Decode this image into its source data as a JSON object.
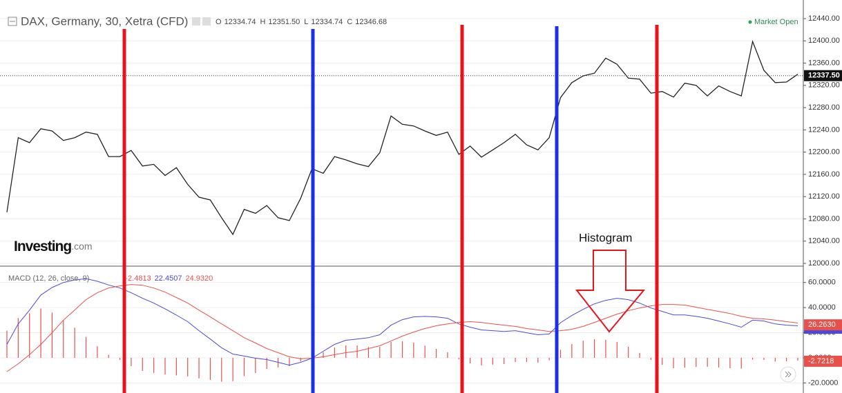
{
  "header": {
    "title": "DAX, Germany, 30, Xetra (CFD)",
    "ohlc": [
      {
        "label": "O",
        "value": "12334.74"
      },
      {
        "label": "H",
        "value": "12351.50"
      },
      {
        "label": "L",
        "value": "12334.74"
      },
      {
        "label": "C",
        "value": "12346.68"
      }
    ],
    "status": "Market Open",
    "logo": "Investing",
    "logo_suffix": ".com"
  },
  "annotation": "Histogram",
  "chart_data": [
    {
      "type": "line",
      "color": "#222222",
      "values": [
        12092,
        12226,
        12217,
        12242,
        12238,
        12221,
        12226,
        12236,
        12232,
        12192,
        12192,
        12203,
        12175,
        12178,
        12158,
        12172,
        12142,
        12119,
        12114,
        12082,
        12052,
        12097,
        12090,
        12104,
        12082,
        12077,
        12117,
        12170,
        12162,
        12192,
        12186,
        12179,
        12174,
        12199,
        12265,
        12250,
        12247,
        12238,
        12230,
        12236,
        12196,
        12211,
        12191,
        12204,
        12217,
        12232,
        12213,
        12204,
        12226,
        12298,
        12325,
        12337,
        12342,
        12369,
        12358,
        12333,
        12331,
        12306,
        12309,
        12299,
        12324,
        12320,
        12301,
        12319,
        12309,
        12301,
        12399,
        12347,
        12325,
        12326,
        12340
      ],
      "ylim": [
        12000,
        12440
      ],
      "yticks": [
        {
          "value": 12000,
          "label": "12000.00"
        },
        {
          "value": 12040,
          "label": "12040.00"
        },
        {
          "value": 12080,
          "label": "12080.00"
        },
        {
          "value": 12120,
          "label": "12120.00"
        },
        {
          "value": 12160,
          "label": "12160.00"
        },
        {
          "value": 12200,
          "label": "12200.00"
        },
        {
          "value": 12240,
          "label": "12240.00"
        },
        {
          "value": 12280,
          "label": "12280.00"
        },
        {
          "value": 12320,
          "label": "12320.00"
        },
        {
          "value": 12360,
          "label": "12360.00"
        },
        {
          "value": 12400,
          "label": "12400.00"
        },
        {
          "value": 12440,
          "label": "12440.00"
        }
      ],
      "last_value": 12337.5,
      "last_label": "12337.50",
      "grid": true
    },
    {
      "type": "macd",
      "title": "MACD (12, 26, close, 9)",
      "series": [
        {
          "color": "#4a4ad6",
          "legend_value": "22.4507",
          "last_value": 23.5412,
          "last_label": "23.5412",
          "values": [
            10.7,
            27,
            38,
            50,
            56,
            60,
            62,
            63,
            61,
            58,
            55.6,
            51.8,
            47.4,
            43.6,
            39,
            34,
            28.8,
            21.6,
            15,
            8,
            3,
            1.4,
            -0.3,
            -1.4,
            -3.6,
            -5.8,
            -3.6,
            -0.3,
            5.2,
            10.7,
            14,
            15,
            16,
            18.4,
            26,
            30.4,
            32.6,
            33,
            32.6,
            31.5,
            27,
            24.4,
            22.2,
            21.6,
            21,
            21.6,
            20,
            18.4,
            19,
            28,
            33.7,
            38.6,
            43,
            45.8,
            47.4,
            46.3,
            43.6,
            39.7,
            37,
            34.2,
            34.2,
            33,
            31.5,
            29.3,
            27,
            24.4,
            30,
            29.3,
            27,
            26,
            25.5
          ]
        },
        {
          "color": "#e8504a",
          "legend_value": "24.9320",
          "last_value": 26.263,
          "last_label": "26.2630",
          "values": [
            -11,
            -4.7,
            2.5,
            10.7,
            20,
            30,
            38,
            46.3,
            51.8,
            55.6,
            57.3,
            58.4,
            57.8,
            55.6,
            52.3,
            48,
            43.6,
            38,
            32.6,
            27,
            21.6,
            16,
            11.8,
            7.4,
            4.1,
            0.8,
            -0.8,
            -0.3,
            0.8,
            2.5,
            4.1,
            5.2,
            7.4,
            9.6,
            13.4,
            17.3,
            20.5,
            23.3,
            25.5,
            27,
            28.2,
            28.8,
            28.2,
            27,
            26,
            25,
            23.3,
            22.2,
            21,
            21.6,
            22.7,
            25,
            28.2,
            31.5,
            34.8,
            37.5,
            39.7,
            41.4,
            42.5,
            42.5,
            42,
            40.3,
            38.6,
            37,
            35.3,
            33,
            31.5,
            31,
            30,
            28.8,
            27.7
          ]
        }
      ],
      "histogram": {
        "color": "#e8504a",
        "legend_value": "-2.4813",
        "last_value": -2.7218,
        "last_label": "-2.7218",
        "values": [
          21.7,
          31.7,
          35.5,
          39.3,
          36,
          30,
          24,
          16.7,
          9.2,
          2.4,
          -1.7,
          -6.6,
          -10.4,
          -12,
          -13.3,
          -14,
          -14.8,
          -16.4,
          -17.6,
          -19,
          -18.6,
          -14.6,
          -12.1,
          -8.8,
          -7.7,
          -6.6,
          -2.8,
          0,
          4.4,
          8.2,
          9.9,
          9.8,
          8.6,
          8.8,
          12.6,
          13.1,
          12.1,
          9.7,
          7.1,
          4.5,
          -1.2,
          -4.4,
          -6,
          -5.4,
          -5,
          -3.4,
          -3.3,
          -3.8,
          -2,
          6.4,
          11,
          13.6,
          14.8,
          14.3,
          12.6,
          8.8,
          3.9,
          -1.7,
          -5.5,
          -8.3,
          -7.8,
          -7.3,
          -7.1,
          -7.7,
          -8.3,
          -8.6,
          -1.5,
          -1.7,
          -3,
          -2.8,
          -2.2
        ]
      },
      "ylim": [
        -28,
        73
      ],
      "yticks": [
        {
          "value": -20,
          "label": "-20.0000"
        },
        {
          "value": 0,
          "label": "0.0000"
        },
        {
          "value": 20,
          "label": "20.0000"
        },
        {
          "value": 40,
          "label": "40.0000"
        },
        {
          "value": 60,
          "label": "60.0000"
        }
      ],
      "grid": true
    }
  ]
}
